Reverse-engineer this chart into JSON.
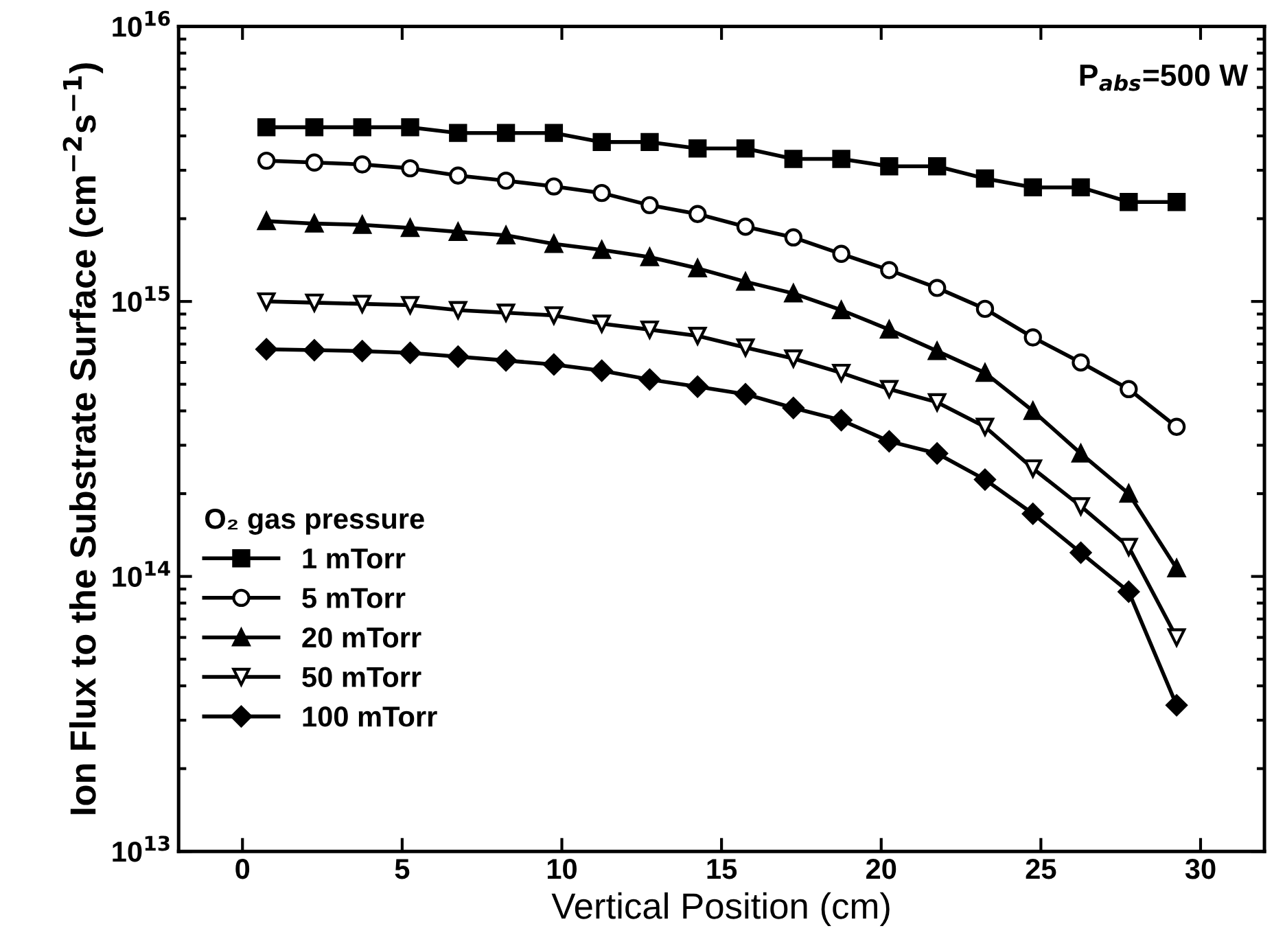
{
  "chart_data": {
    "type": "line",
    "xlabel": "Vertical Position (cm)",
    "ylabel": "Ion Flux to the Substrate Surface (cm$^{−2}$s$^{−1}$)",
    "legend_title": "O₂ gas pressure",
    "annotations": [
      "P$_{abs}$=500 W"
    ],
    "x": [
      0.75,
      2.25,
      3.75,
      5.25,
      6.75,
      8.25,
      9.75,
      11.25,
      12.75,
      14.25,
      15.75,
      17.25,
      18.75,
      20.25,
      21.75,
      23.25,
      24.75,
      26.25,
      27.75,
      29.25
    ],
    "series": [
      {
        "name": "1 mTorr",
        "color": "#000000",
        "marker": "square",
        "values": [
          4300000000000000.0,
          4300000000000000.0,
          4300000000000000.0,
          4300000000000000.0,
          4100000000000000.0,
          4100000000000000.0,
          4100000000000000.0,
          3800000000000000.0,
          3800000000000000.0,
          3600000000000000.0,
          3600000000000000.0,
          3300000000000000.0,
          3300000000000000.0,
          3100000000000000.0,
          3100000000000000.0,
          2800000000000000.0,
          2600000000000000.0,
          2600000000000000.0,
          2300000000000000.0,
          2300000000000000.0
        ]
      },
      {
        "name": "5 mTorr",
        "color": "#000000",
        "marker": "circle_open",
        "values": [
          3250000000000000.0,
          3200000000000000.0,
          3150000000000000.0,
          3050000000000000.0,
          2870000000000000.0,
          2750000000000000.0,
          2620000000000000.0,
          2480000000000000.0,
          2240000000000000.0,
          2080000000000000.0,
          1870000000000000.0,
          1710000000000000.0,
          1490000000000000.0,
          1300000000000000.0,
          1120000000000000.0,
          940000000000000.0,
          740000000000000.0,
          600000000000000.0,
          480000000000000.0,
          350000000000000.0
        ]
      },
      {
        "name": "20 mTorr",
        "color": "#000000",
        "marker": "triangle",
        "values": [
          1960000000000000.0,
          1920000000000000.0,
          1900000000000000.0,
          1850000000000000.0,
          1790000000000000.0,
          1740000000000000.0,
          1620000000000000.0,
          1540000000000000.0,
          1450000000000000.0,
          1320000000000000.0,
          1180000000000000.0,
          1070000000000000.0,
          930000000000000.0,
          790000000000000.0,
          660000000000000.0,
          550000000000000.0,
          400000000000000.0,
          280000000000000.0,
          200000000000000.0,
          107000000000000.0
        ]
      },
      {
        "name": "50 mTorr",
        "color": "#000000",
        "marker": "triangle_down_open",
        "values": [
          1000000000000000.0,
          990000000000000.0,
          980000000000000.0,
          970000000000000.0,
          930000000000000.0,
          910000000000000.0,
          890000000000000.0,
          830000000000000.0,
          790000000000000.0,
          750000000000000.0,
          680000000000000.0,
          620000000000000.0,
          550000000000000.0,
          480000000000000.0,
          430000000000000.0,
          350000000000000.0,
          247000000000000.0,
          180000000000000.0,
          128000000000000.0,
          60000000000000.0
        ]
      },
      {
        "name": "100 mTorr",
        "color": "#000000",
        "marker": "diamond",
        "values": [
          670000000000000.0,
          665000000000000.0,
          660000000000000.0,
          650000000000000.0,
          630000000000000.0,
          610000000000000.0,
          590000000000000.0,
          560000000000000.0,
          520000000000000.0,
          490000000000000.0,
          460000000000000.0,
          410000000000000.0,
          370000000000000.0,
          310000000000000.0,
          280000000000000.0,
          225000000000000.0,
          169000000000000.0,
          122000000000000.0,
          88000000000000.0,
          34000000000000.0
        ]
      }
    ],
    "log": "y",
    "xlim": [
      -2,
      32
    ],
    "xticks": [
      0,
      5,
      10,
      15,
      20,
      25,
      30
    ],
    "ylim": [
      10000000000000.0,
      1e+16
    ],
    "yticks": [
      {
        "value": 10000000000000.0,
        "label": "10$^{13}$"
      },
      {
        "value": 100000000000000.0,
        "label": "10$^{14}$"
      },
      {
        "value": 1000000000000000.0,
        "label": "10$^{15}$"
      },
      {
        "value": 1e+16,
        "label": "10$^{16}$"
      }
    ],
    "grid": false,
    "legend": "bottom left",
    "line_style": "solid"
  }
}
